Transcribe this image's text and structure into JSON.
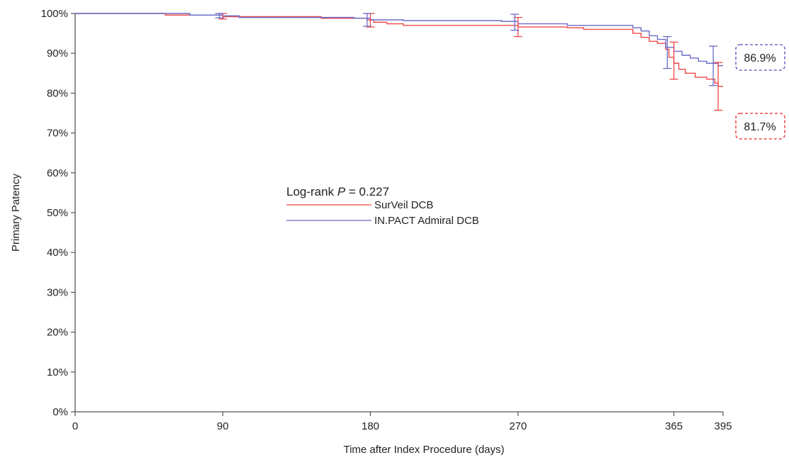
{
  "chart_data": {
    "type": "line",
    "title": "",
    "xlabel": "Time after Index Procedure (days)",
    "ylabel": "Primary Patency",
    "xlim": [
      0,
      395
    ],
    "ylim": [
      0,
      100
    ],
    "x_ticks": [
      0,
      90,
      180,
      270,
      365,
      395
    ],
    "y_ticks": [
      0,
      10,
      20,
      30,
      40,
      50,
      60,
      70,
      80,
      90,
      100
    ],
    "y_tick_suffix": "%",
    "grid": false,
    "legend_position": "center",
    "annotation": {
      "prefix": "Log-rank ",
      "italic": "P",
      "suffix": " = 0.227"
    },
    "series": [
      {
        "name": "SurVeil DCB",
        "color": "#f04848",
        "x": [
          0,
          40,
          55,
          90,
          150,
          178,
          182,
          190,
          200,
          260,
          270,
          285,
          300,
          310,
          330,
          340,
          345,
          350,
          355,
          360,
          362,
          365,
          368,
          372,
          378,
          385,
          390,
          392,
          395
        ],
        "y": [
          100,
          100,
          99.6,
          99.2,
          98.8,
          98.4,
          97.8,
          97.4,
          97,
          97,
          96.6,
          96.6,
          96.4,
          96,
          96,
          95,
          94,
          93,
          92.5,
          91,
          89,
          87.5,
          86,
          85,
          84,
          83.5,
          82.5,
          81.7,
          81.7
        ],
        "end_label": "81.7%",
        "error_bars": [
          {
            "x": 90,
            "low": 98.6,
            "high": 100
          },
          {
            "x": 180,
            "low": 96.6,
            "high": 100
          },
          {
            "x": 270,
            "low": 94.2,
            "high": 99
          },
          {
            "x": 365,
            "low": 83.5,
            "high": 92.8
          },
          {
            "x": 392,
            "low": 75.7,
            "high": 87.7
          }
        ]
      },
      {
        "name": "IN.PACT Admiral DCB",
        "color": "#6b6bc8",
        "x": [
          0,
          60,
          70,
          90,
          100,
          170,
          180,
          200,
          260,
          270,
          300,
          340,
          345,
          350,
          355,
          360,
          365,
          370,
          375,
          380,
          385,
          392,
          395
        ],
        "y": [
          100,
          100,
          99.6,
          99.4,
          99,
          98.8,
          98.4,
          98.2,
          98,
          97.4,
          97,
          96.4,
          95.6,
          94.4,
          93.5,
          91.5,
          90.5,
          89.5,
          88.8,
          88,
          87.5,
          86.9,
          86.9
        ],
        "end_label": "86.9%",
        "error_bars": [
          {
            "x": 88,
            "low": 98.9,
            "high": 100
          },
          {
            "x": 178,
            "low": 96.8,
            "high": 100
          },
          {
            "x": 268,
            "low": 95.8,
            "high": 99.8
          },
          {
            "x": 361,
            "low": 86.2,
            "high": 94.2
          },
          {
            "x": 389,
            "low": 81.9,
            "high": 91.8
          }
        ]
      }
    ]
  }
}
